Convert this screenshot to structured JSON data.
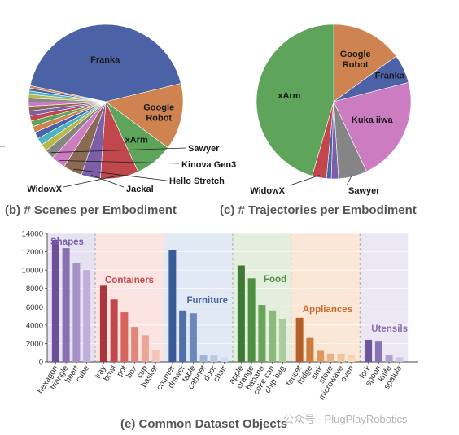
{
  "colors": {
    "blue": "#4c62a6",
    "orange": "#cf8350",
    "green": "#5ea45b",
    "red": "#c0484d",
    "purple": "#7b5fa8",
    "brown": "#8a6a52",
    "pink": "#cc7cc0",
    "gray": "#858585"
  },
  "chart_data": [
    {
      "type": "pie",
      "caption": "(b) # Scenes per Embodiment",
      "slices": [
        {
          "label": "Franka",
          "value": 43,
          "color": "#4c62a6"
        },
        {
          "label": "Google Robot",
          "value": 14,
          "color": "#cf8350"
        },
        {
          "label": "xArm",
          "value": 8,
          "color": "#5ea45b"
        },
        {
          "label": "WidowX",
          "value": 8,
          "color": "#c0484d"
        },
        {
          "label": "Jackal",
          "value": 4,
          "color": "#7b5fa8"
        },
        {
          "label": "Hello Stretch",
          "value": 4,
          "color": "#8a6a52"
        },
        {
          "label": "Kinova Gen3",
          "value": 3,
          "color": "#cc7cc0"
        },
        {
          "label": "Sawyer",
          "value": 2,
          "color": "#858585"
        },
        {
          "label": "",
          "value": 1.5,
          "color": "#b9b84a"
        },
        {
          "label": "",
          "value": 1.5,
          "color": "#4fb3c4"
        },
        {
          "label": "",
          "value": 1.4,
          "color": "#4c62a6"
        },
        {
          "label": "",
          "value": 1.3,
          "color": "#cf8350"
        },
        {
          "label": "",
          "value": 1.2,
          "color": "#5ea45b"
        },
        {
          "label": "",
          "value": 1.1,
          "color": "#c0484d"
        },
        {
          "label": "",
          "value": 1.0,
          "color": "#7b5fa8"
        },
        {
          "label": "",
          "value": 1.0,
          "color": "#8a6a52"
        },
        {
          "label": "",
          "value": 0.9,
          "color": "#cc7cc0"
        },
        {
          "label": "",
          "value": 0.8,
          "color": "#858585"
        },
        {
          "label": "",
          "value": 0.8,
          "color": "#b9b84a"
        },
        {
          "label": "",
          "value": 0.7,
          "color": "#4fb3c4"
        },
        {
          "label": "",
          "value": 0.6,
          "color": "#4c62a6"
        },
        {
          "label": "",
          "value": 0.5,
          "color": "#cf8350"
        }
      ]
    },
    {
      "type": "pie",
      "caption": "(c) # Trajectories per Embodiment",
      "slices": [
        {
          "label": "Google Robot",
          "value": 15,
          "color": "#cf8350"
        },
        {
          "label": "Franka",
          "value": 6,
          "color": "#4c62a6"
        },
        {
          "label": "Kuka iiwa",
          "value": 22,
          "color": "#cc7cc0"
        },
        {
          "label": "Sawyer",
          "value": 6,
          "color": "#858585"
        },
        {
          "label": "",
          "value": 1.5,
          "color": "#7b5fa8"
        },
        {
          "label": "",
          "value": 1,
          "color": "#4c62a6"
        },
        {
          "label": "WidowX",
          "value": 3,
          "color": "#c0484d"
        },
        {
          "label": "xArm",
          "value": 45.5,
          "color": "#5ea45b"
        }
      ]
    },
    {
      "type": "bar",
      "caption": "(e) Common Dataset Objects",
      "ylim": [
        0,
        14000
      ],
      "yticks": [
        "0",
        "2000",
        "4000",
        "6000",
        "8000",
        "10000",
        "12000",
        "14000"
      ],
      "grid": "horizontal",
      "groups": [
        {
          "name": "Shapes",
          "color": "#7b5fa8",
          "bg": "#e5e2f1",
          "categories": [
            "hexagon",
            "triangle",
            "heart",
            "cube"
          ],
          "values": [
            13300,
            12400,
            10800,
            10000
          ],
          "bar_colors": [
            "#6b4f9a",
            "#8a70b3",
            "#a591c7",
            "#bfb0d8"
          ]
        },
        {
          "name": "Containers",
          "color": "#c0484d",
          "bg": "#fbe4e1",
          "categories": [
            "tray",
            "bowl",
            "pot",
            "box",
            "cup",
            "basket"
          ],
          "values": [
            8300,
            6800,
            5400,
            3800,
            2900,
            1300
          ],
          "bar_colors": [
            "#a8363f",
            "#c0484d",
            "#d5645c",
            "#e18779",
            "#eba697",
            "#f3c4b8"
          ]
        },
        {
          "name": "Furniture",
          "color": "#4c62a6",
          "bg": "#e1e9f4",
          "categories": [
            "counter",
            "drawer",
            "table",
            "cabinet",
            "door",
            "chair"
          ],
          "values": [
            12200,
            5600,
            5300,
            700,
            700,
            500
          ],
          "bar_colors": [
            "#3b5a98",
            "#4f6fab",
            "#6b87bb",
            "#9fb5d6",
            "#b8c9e0",
            "#cfdbea"
          ]
        },
        {
          "name": "Food",
          "color": "#4f8f3f",
          "bg": "#e3efdc",
          "categories": [
            "apple",
            "orange",
            "banana",
            "coke can",
            "chip bag"
          ],
          "values": [
            10500,
            9100,
            6200,
            5600,
            4700
          ],
          "bar_colors": [
            "#3e7a35",
            "#4f8f42",
            "#6aa45b",
            "#8cba7c",
            "#abcd9c"
          ]
        },
        {
          "name": "Appliances",
          "color": "#c96b2e",
          "bg": "#fbe7d6",
          "categories": [
            "faucet",
            "fridge",
            "sink",
            "stove",
            "microwave",
            "oven"
          ],
          "values": [
            4800,
            2600,
            1200,
            900,
            900,
            800
          ],
          "bar_colors": [
            "#b8602a",
            "#cf7b3e",
            "#de985d",
            "#e8b384",
            "#efc6a2",
            "#f4d6bb"
          ]
        },
        {
          "name": "Utensils",
          "color": "#8a6fb0",
          "bg": "#ece8f3",
          "categories": [
            "fork",
            "spoon",
            "knife",
            "spatula"
          ],
          "values": [
            2400,
            2200,
            800,
            500
          ],
          "bar_colors": [
            "#6e569c",
            "#8a73b3",
            "#b2a2cf",
            "#cfc4e2"
          ]
        }
      ]
    }
  ],
  "watermark": "公众号 · PlugPlayRobotics"
}
